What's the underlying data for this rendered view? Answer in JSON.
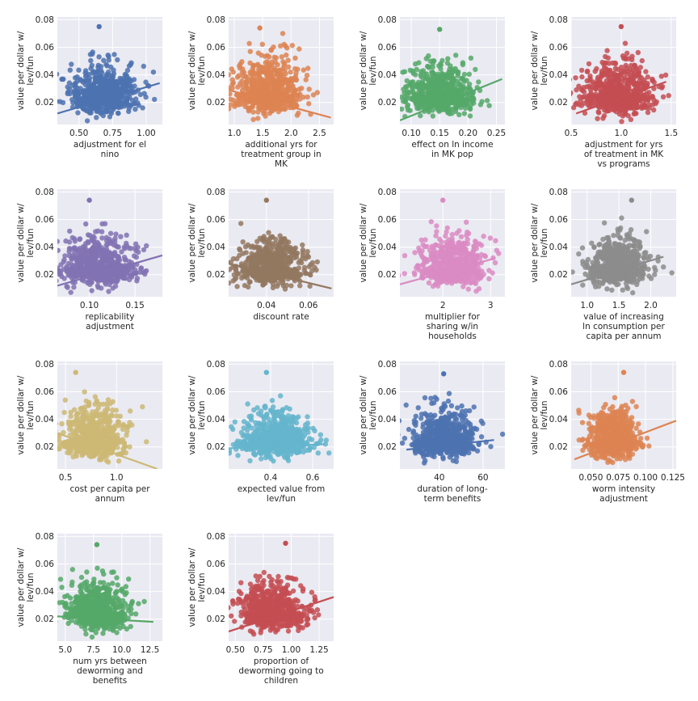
{
  "ylabel": [
    "value per dollar w/",
    "lev/fun"
  ],
  "chart_data": [
    {
      "type": "scatter",
      "xlabel": [
        "adjustment for el",
        "nino"
      ],
      "color": "#4c72b0",
      "xlim": [
        0.34,
        1.12
      ],
      "xticks": [
        "0.50",
        "0.75",
        "1.00"
      ],
      "xtick_values": [
        0.5,
        0.75,
        1.0
      ],
      "center": [
        0.68,
        0.024
      ],
      "spread": [
        0.12,
        0.009
      ],
      "trend": [
        [
          0.34,
          0.012
        ],
        [
          1.1,
          0.034
        ]
      ],
      "peak": [
        0.65,
        0.075
      ]
    },
    {
      "type": "scatter",
      "xlabel": [
        "additional yrs for",
        "treatment group in",
        "MK"
      ],
      "color": "#dd8452",
      "xlim": [
        0.9,
        2.75
      ],
      "xticks": [
        "1.0",
        "1.5",
        "2.0",
        "2.5"
      ],
      "xtick_values": [
        1.0,
        1.5,
        2.0,
        2.5
      ],
      "center": [
        1.6,
        0.026
      ],
      "spread": [
        0.3,
        0.011
      ],
      "trend": [
        [
          0.9,
          0.029
        ],
        [
          2.7,
          0.009
        ]
      ],
      "peak": [
        1.45,
        0.074
      ]
    },
    {
      "type": "scatter",
      "xlabel": [
        "effect on ln income",
        "in MK pop"
      ],
      "color": "#55a868",
      "xlim": [
        0.08,
        0.265
      ],
      "xticks": [
        "0.10",
        "0.15",
        "0.20",
        "0.25"
      ],
      "xtick_values": [
        0.1,
        0.15,
        0.2,
        0.25
      ],
      "center": [
        0.15,
        0.024
      ],
      "spread": [
        0.03,
        0.009
      ],
      "trend": [
        [
          0.08,
          0.007
        ],
        [
          0.26,
          0.037
        ]
      ],
      "peak": [
        0.15,
        0.073
      ]
    },
    {
      "type": "scatter",
      "xlabel": [
        "adjustment for yrs",
        "of treatment in MK",
        "vs programs"
      ],
      "color": "#c44e52",
      "xlim": [
        0.5,
        1.55
      ],
      "xticks": [
        "0.5",
        "1.0",
        "1.5"
      ],
      "xtick_values": [
        0.5,
        1.0,
        1.5
      ],
      "center": [
        0.97,
        0.025
      ],
      "spread": [
        0.17,
        0.01
      ],
      "trend": [
        [
          0.55,
          0.012
        ],
        [
          1.45,
          0.035
        ]
      ],
      "peak": [
        1.0,
        0.075
      ]
    },
    {
      "type": "scatter",
      "xlabel": [
        "replicability",
        "adjustment"
      ],
      "color": "#8172b3",
      "xlim": [
        0.065,
        0.18
      ],
      "xticks": [
        "0.10",
        "0.15"
      ],
      "xtick_values": [
        0.1,
        0.15
      ],
      "center": [
        0.11,
        0.024
      ],
      "spread": [
        0.02,
        0.009
      ],
      "trend": [
        [
          0.065,
          0.012
        ],
        [
          0.18,
          0.034
        ]
      ],
      "peak": [
        0.1,
        0.074
      ]
    },
    {
      "type": "scatter",
      "xlabel": [
        "discount rate"
      ],
      "color": "#937860",
      "xlim": [
        0.022,
        0.072
      ],
      "xticks": [
        "0.04",
        "0.06"
      ],
      "xtick_values": [
        0.04,
        0.06
      ],
      "center": [
        0.042,
        0.024
      ],
      "spread": [
        0.008,
        0.009
      ],
      "trend": [
        [
          0.022,
          0.028
        ],
        [
          0.071,
          0.01
        ]
      ],
      "peak": [
        0.04,
        0.074
      ]
    },
    {
      "type": "scatter",
      "xlabel": [
        "multiplier for",
        "sharing w/in",
        "households"
      ],
      "color": "#da8bc3",
      "xlim": [
        1.1,
        3.3
      ],
      "xticks": [
        "2",
        "3"
      ],
      "xtick_values": [
        2,
        3
      ],
      "center": [
        2.2,
        0.024
      ],
      "spread": [
        0.33,
        0.009
      ],
      "trend": [
        [
          1.1,
          0.013
        ],
        [
          3.1,
          0.032
        ]
      ],
      "peak": [
        2.0,
        0.074
      ]
    },
    {
      "type": "scatter",
      "xlabel": [
        "value of increasing",
        "ln consumption per",
        "capita per annum"
      ],
      "color": "#8c8c8c",
      "xlim": [
        0.75,
        2.4
      ],
      "xticks": [
        "1.0",
        "1.5",
        "2.0"
      ],
      "xtick_values": [
        1.0,
        1.5,
        2.0
      ],
      "center": [
        1.5,
        0.024
      ],
      "spread": [
        0.22,
        0.009
      ],
      "trend": [
        [
          0.75,
          0.013
        ],
        [
          2.2,
          0.033
        ]
      ],
      "peak": [
        1.7,
        0.074
      ]
    },
    {
      "type": "scatter",
      "xlabel": [
        "cost per capita per",
        "annum"
      ],
      "color": "#ccb974",
      "xlim": [
        0.42,
        1.45
      ],
      "xticks": [
        "0.5",
        "1.0"
      ],
      "xtick_values": [
        0.5,
        1.0
      ],
      "center": [
        0.78,
        0.025
      ],
      "spread": [
        0.15,
        0.01
      ],
      "trend": [
        [
          0.42,
          0.03
        ],
        [
          1.4,
          0.004
        ]
      ],
      "peak": [
        0.6,
        0.074
      ]
    },
    {
      "type": "scatter",
      "xlabel": [
        "expected value from",
        "lev/fun"
      ],
      "color": "#64b5cd",
      "xlim": [
        0.2,
        0.7
      ],
      "xticks": [
        "0.4",
        "0.6"
      ],
      "xtick_values": [
        0.4,
        0.6
      ],
      "center": [
        0.42,
        0.024
      ],
      "spread": [
        0.08,
        0.009
      ],
      "trend": [
        [
          0.2,
          0.019
        ],
        [
          0.66,
          0.022
        ]
      ],
      "peak": [
        0.38,
        0.074
      ]
    },
    {
      "type": "scatter",
      "xlabel": [
        "duration of long-",
        "term benefits"
      ],
      "color": "#4c72b0",
      "xlim": [
        22,
        70
      ],
      "xticks": [
        "40",
        "60"
      ],
      "xtick_values": [
        40,
        60
      ],
      "center": [
        42,
        0.024
      ],
      "spread": [
        7,
        0.009
      ],
      "trend": [
        [
          25,
          0.018
        ],
        [
          65,
          0.025
        ]
      ],
      "peak": [
        42,
        0.073
      ]
    },
    {
      "type": "scatter",
      "xlabel": [
        "worm intensity",
        "adjustment"
      ],
      "color": "#dd8452",
      "xlim": [
        0.032,
        0.128
      ],
      "xticks": [
        "0.050",
        "0.075",
        "0.100",
        "0.125"
      ],
      "xtick_values": [
        0.05,
        0.075,
        0.1,
        0.125
      ],
      "center": [
        0.07,
        0.024
      ],
      "spread": [
        0.011,
        0.009
      ],
      "trend": [
        [
          0.035,
          0.011
        ],
        [
          0.128,
          0.039
        ]
      ],
      "peak": [
        0.08,
        0.074
      ]
    },
    {
      "type": "scatter",
      "xlabel": [
        "num yrs between",
        "deworming and",
        "benefits"
      ],
      "color": "#55a868",
      "xlim": [
        4.3,
        13.6
      ],
      "xticks": [
        "5.0",
        "7.5",
        "10.0",
        "12.5"
      ],
      "xtick_values": [
        5.0,
        7.5,
        10.0,
        12.5
      ],
      "center": [
        7.8,
        0.024
      ],
      "spread": [
        1.3,
        0.009
      ],
      "trend": [
        [
          4.3,
          0.022
        ],
        [
          12.8,
          0.018
        ]
      ],
      "peak": [
        7.8,
        0.074
      ]
    },
    {
      "type": "scatter",
      "xlabel": [
        "proportion of",
        "deworming going to",
        "children"
      ],
      "color": "#c44e52",
      "xlim": [
        0.44,
        1.38
      ],
      "xticks": [
        "0.50",
        "0.75",
        "1.00",
        "1.25"
      ],
      "xtick_values": [
        0.5,
        0.75,
        1.0,
        1.25
      ],
      "center": [
        0.83,
        0.024
      ],
      "spread": [
        0.15,
        0.009
      ],
      "trend": [
        [
          0.44,
          0.011
        ],
        [
          1.38,
          0.036
        ]
      ],
      "peak": [
        0.95,
        0.075
      ]
    }
  ],
  "yticks": [
    "0.02",
    "0.04",
    "0.06",
    "0.08"
  ],
  "ytick_values": [
    0.02,
    0.04,
    0.06,
    0.08
  ],
  "ylim": [
    0.004,
    0.082
  ]
}
